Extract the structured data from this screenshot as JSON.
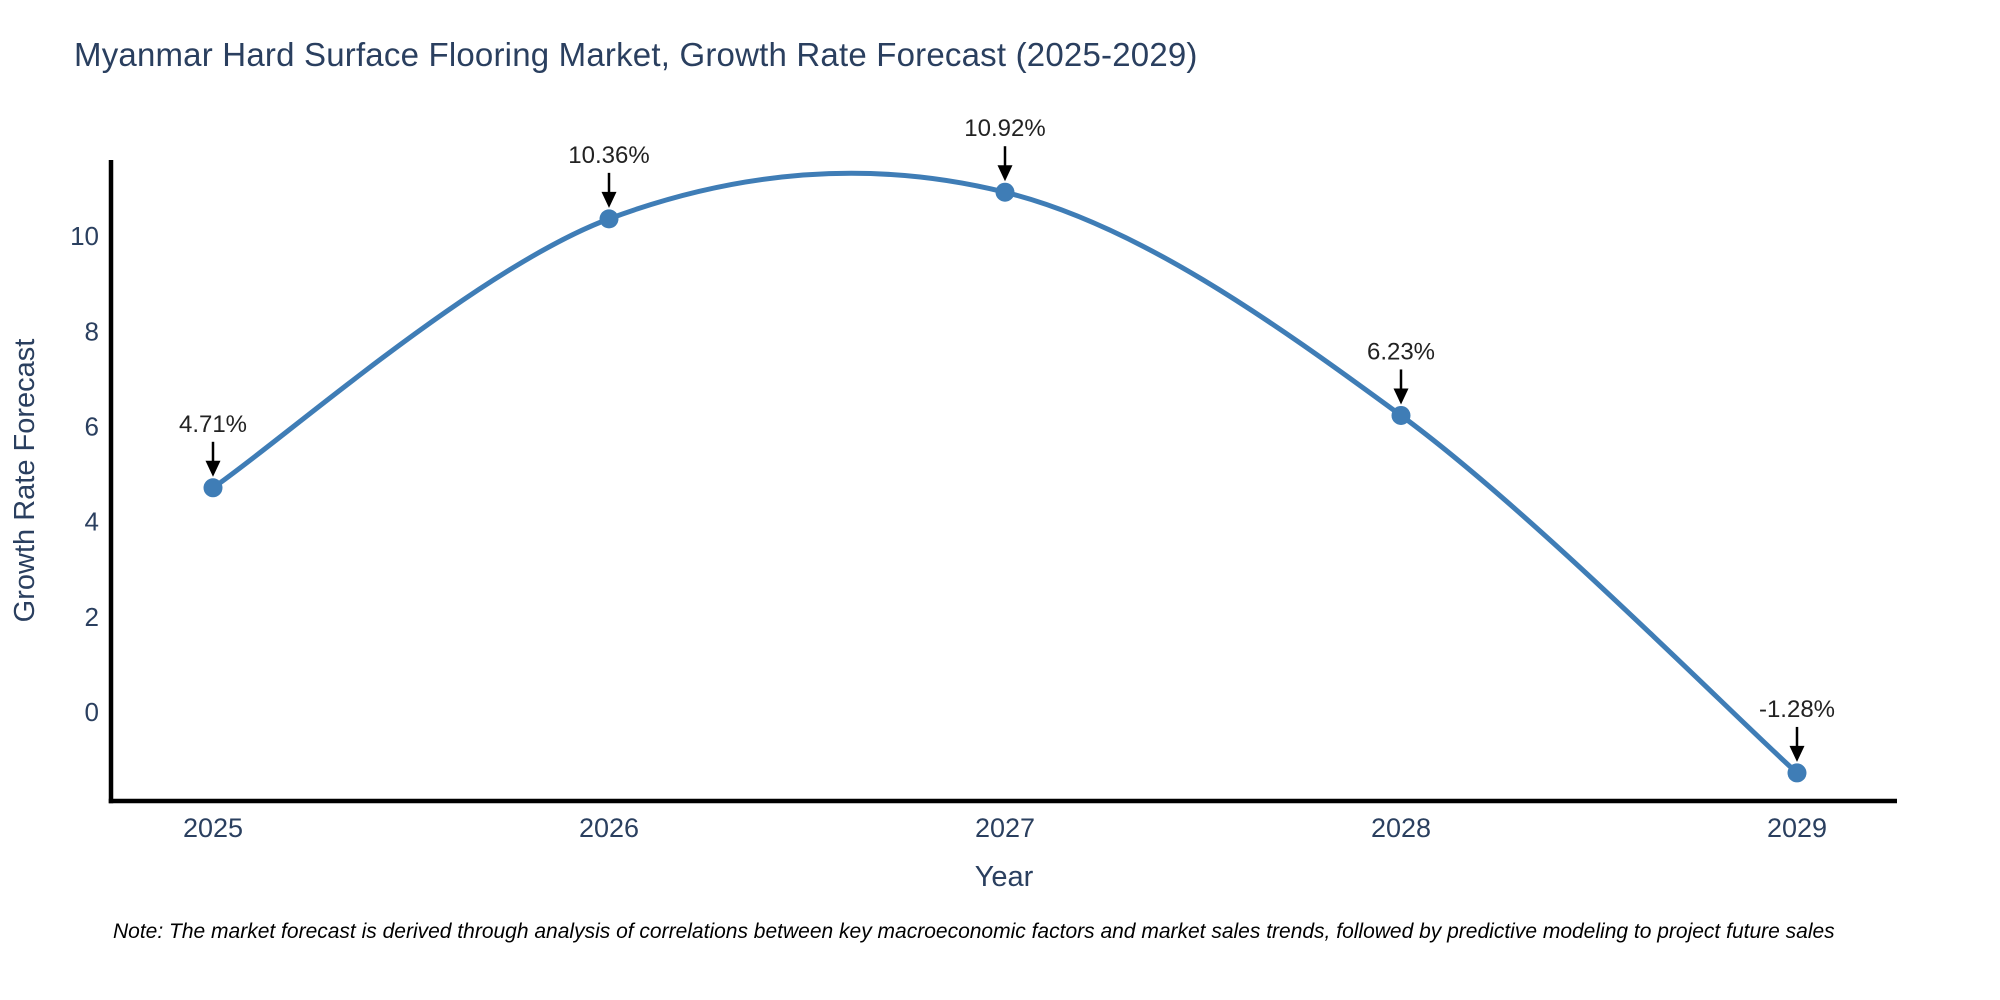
{
  "title": {
    "text": "Myanmar Hard Surface Flooring Market, Growth Rate Forecast (2025-2029)",
    "color": "#2a3f5f"
  },
  "note": {
    "text": "Note: The market forecast is derived through analysis of correlations between key macroeconomic factors and market sales trends, followed by predictive modeling to project future sales"
  },
  "chart_data": {
    "type": "line",
    "line_shape": "spline",
    "x": [
      2025,
      2026,
      2027,
      2028,
      2029
    ],
    "values": [
      4.71,
      10.36,
      10.92,
      6.23,
      -1.28
    ],
    "point_labels": [
      "4.71%",
      "10.36%",
      "10.92%",
      "6.23%",
      "-1.28%"
    ],
    "title": "Myanmar Hard Surface Flooring Market, Growth Rate Forecast (2025-2029)",
    "xlabel": "Year",
    "ylabel": "Growth Rate Forecast",
    "xticks": [
      "2025",
      "2026",
      "2027",
      "2028",
      "2029"
    ],
    "yticks": [
      0,
      2,
      4,
      6,
      8,
      10
    ],
    "ylim": [
      -1.9,
      11.95
    ],
    "grid": false,
    "legend": false,
    "line_color": "#3f7db6",
    "marker_color": "#3f7db6",
    "axis_line_color": "#000000",
    "annotation_arrow_color": "#000000",
    "annotation_text_color": "#222222",
    "tick_label_color": "#2a3f5f",
    "axis_title_color": "#2a3f5f"
  }
}
